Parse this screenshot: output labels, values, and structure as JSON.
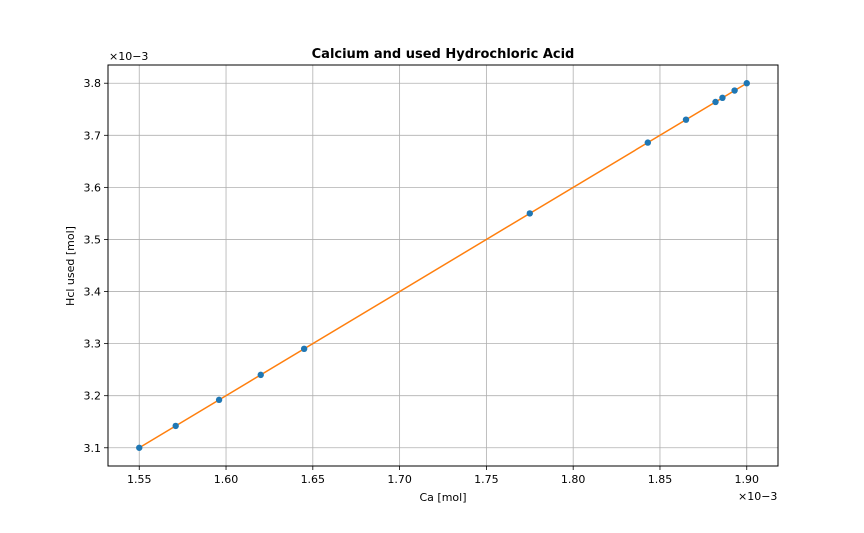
{
  "chart_data": {
    "type": "scatter",
    "title": "Calcium and used Hydrochloric Acid",
    "xlabel": "Ca [mol]",
    "ylabel": "Hcl used [mol]",
    "x_offset_label": "×10−3",
    "y_offset_label": "×10−3",
    "xlim": [
      1.532,
      1.918
    ],
    "ylim": [
      3.065,
      3.835
    ],
    "x_ticks": [
      1.55,
      1.6,
      1.65,
      1.7,
      1.75,
      1.8,
      1.85,
      1.9
    ],
    "x_tick_labels": [
      "1.55",
      "1.60",
      "1.65",
      "1.70",
      "1.75",
      "1.80",
      "1.85",
      "1.90"
    ],
    "y_ticks": [
      3.1,
      3.2,
      3.3,
      3.4,
      3.5,
      3.6,
      3.7,
      3.8
    ],
    "y_tick_labels": [
      "3.1",
      "3.2",
      "3.3",
      "3.4",
      "3.5",
      "3.6",
      "3.7",
      "3.8"
    ],
    "grid": true,
    "series": [
      {
        "kind": "points",
        "color": "#1f77b4",
        "x": [
          1.55,
          1.571,
          1.596,
          1.62,
          1.645,
          1.775,
          1.843,
          1.865,
          1.882,
          1.886,
          1.893,
          1.9
        ],
        "y": [
          3.1,
          3.142,
          3.192,
          3.24,
          3.29,
          3.55,
          3.686,
          3.73,
          3.764,
          3.772,
          3.786,
          3.8
        ]
      },
      {
        "kind": "line",
        "color": "#ff7f0e",
        "x": [
          1.55,
          1.9
        ],
        "y": [
          3.1,
          3.8
        ]
      }
    ]
  }
}
